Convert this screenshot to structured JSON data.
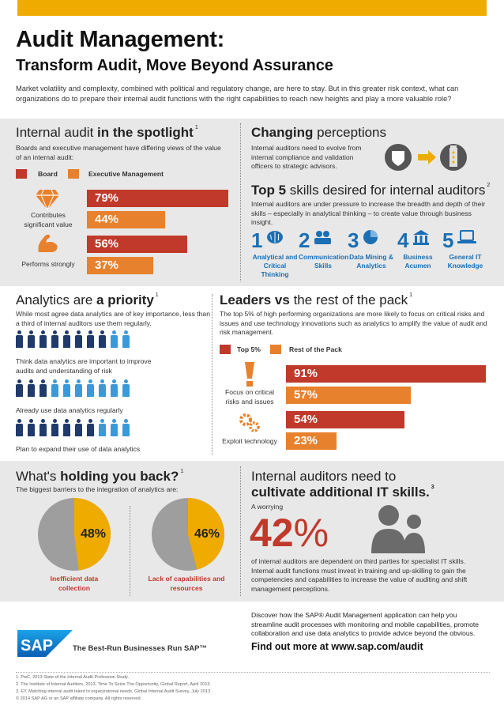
{
  "header": {
    "title": "Audit Management:",
    "subtitle": "Transform Audit, Move Beyond Assurance",
    "intro": "Market volatility and complexity, combined with political and regulatory change, are here to stay. But in this greater risk context, what can organizations do to prepare their internal audit functions with the right capabilities to reach new heights and play a more valuable role?"
  },
  "colors": {
    "accent": "#f0ab00",
    "red": "#c0392b",
    "orange": "#e8812d",
    "blue": "#1a6fb5",
    "navy": "#1f3a6b",
    "band": "#e8e8e8"
  },
  "spotlight": {
    "title_a": "Internal audit ",
    "title_b": "in the spotlight",
    "sup": "1",
    "desc": "Boards and executive management have differing views of the value of an internal audit:",
    "legend_board": "Board",
    "legend_exec": "Executive Management",
    "row1_label": "Contributes significant value",
    "row2_label": "Performs strongly",
    "chart_data": {
      "type": "bar",
      "categories": [
        "Contributes significant value",
        "Performs strongly"
      ],
      "series": [
        {
          "name": "Board",
          "values": [
            79,
            56
          ],
          "labels": [
            "79%",
            "56%"
          ]
        },
        {
          "name": "Executive Management",
          "values": [
            44,
            37
          ],
          "labels": [
            "44%",
            "37%"
          ]
        }
      ]
    }
  },
  "perceptions": {
    "title_a": "Changing",
    "title_b": " perceptions",
    "desc": "Internal auditors need to evolve from internal compliance and validation officers to strategic advisors."
  },
  "top5": {
    "title_a": "Top 5",
    "title_b": " skills desired for internal auditors",
    "sup": "2",
    "desc": "Internal auditors are under pressure to increase the breadth and depth of their skills – especially in analytical thinking – to create value through business insight.",
    "skills": [
      {
        "num": "1",
        "label": "Analytical and Critical Thinking",
        "icon": "brain-icon"
      },
      {
        "num": "2",
        "label": "Communication Skills",
        "icon": "people-icon"
      },
      {
        "num": "3",
        "label": "Data Mining & Analytics",
        "icon": "pie-icon"
      },
      {
        "num": "4",
        "label": "Business Acumen",
        "icon": "building-icon"
      },
      {
        "num": "5",
        "label": "General IT Knowledge",
        "icon": "laptop-icon"
      }
    ]
  },
  "analytics": {
    "title_a": "Analytics are ",
    "title_b": "a priority",
    "sup": "1",
    "desc": "While most agree data analytics are of key importance, less than a third of internal auditors use them regularly.",
    "rows": [
      {
        "label": "Think data analytics are important to improve audits and understanding of risk",
        "filled": 8
      },
      {
        "label": "Already use data analytics regularly",
        "filled": 3
      },
      {
        "label": "Plan to expand their use of data analytics",
        "filled": 7
      }
    ]
  },
  "leaders": {
    "title_a": "Leaders vs",
    "title_b": " the rest of the pack",
    "sup": "1",
    "desc": "The top 5% of high performing organizations are more likely to focus on critical risks and issues and use technology innovations such as analytics to amplify the value of audit and risk management.",
    "legend_top": "Top 5%",
    "legend_rest": "Rest of the Pack",
    "row1_label": "Focus on critical risks and issues",
    "row2_label": "Exploit technology",
    "chart_data": {
      "type": "bar",
      "categories": [
        "Focus on critical risks and issues",
        "Exploit technology"
      ],
      "series": [
        {
          "name": "Top 5%",
          "values": [
            91,
            54
          ],
          "labels": [
            "91%",
            "54%"
          ]
        },
        {
          "name": "Rest of the Pack",
          "values": [
            57,
            23
          ],
          "labels": [
            "57%",
            "23%"
          ]
        }
      ]
    }
  },
  "holding": {
    "title_a": "What's ",
    "title_b": "holding you back?",
    "sup": "1",
    "desc": "The biggest barriers to the integration of analytics are:",
    "chart_data": [
      {
        "type": "pie",
        "value": 48,
        "label": "48%",
        "caption": "Inefficient data collection"
      },
      {
        "type": "pie",
        "value": 46,
        "label": "46%",
        "caption": "Lack of capabilities and resources"
      }
    ]
  },
  "itskills": {
    "title_a": "Internal auditors need to",
    "title_b": "cultivate additional IT skills.",
    "sup": "3",
    "worry": "A worrying",
    "big_num": "42",
    "big_pct": "%",
    "desc": "of internal auditors are dependent on third parties for specialist IT skills. Internal audit functions must invest in training and up-skilling to gain the competencies and capabilities to increase the value of auditing and shift management perceptions."
  },
  "cta": {
    "text": "Discover how the SAP® Audit Management application can help you streamline audit processes with monitoring and mobile capabilities, promote collaboration and use data analytics to provide advice beyond the obvious.",
    "link": "Find out more at www.sap.com/audit"
  },
  "brand": {
    "logo": "SAP",
    "tagline": "The Best-Run Businesses Run SAP™"
  },
  "footnotes": [
    "1. PwC, 2013 State of the Internal Audit Profession Study.",
    "2. The Institute of Internal Auditors, 2013, Time To Seize The Opportunity, Global Report, April 2013.",
    "3. EY, Matching internal audit talent to organizational needs, Global Internal Audit Survey, July 2013.",
    "© 2014 SAP AG or an SAP affiliate company. All rights reserved."
  ]
}
